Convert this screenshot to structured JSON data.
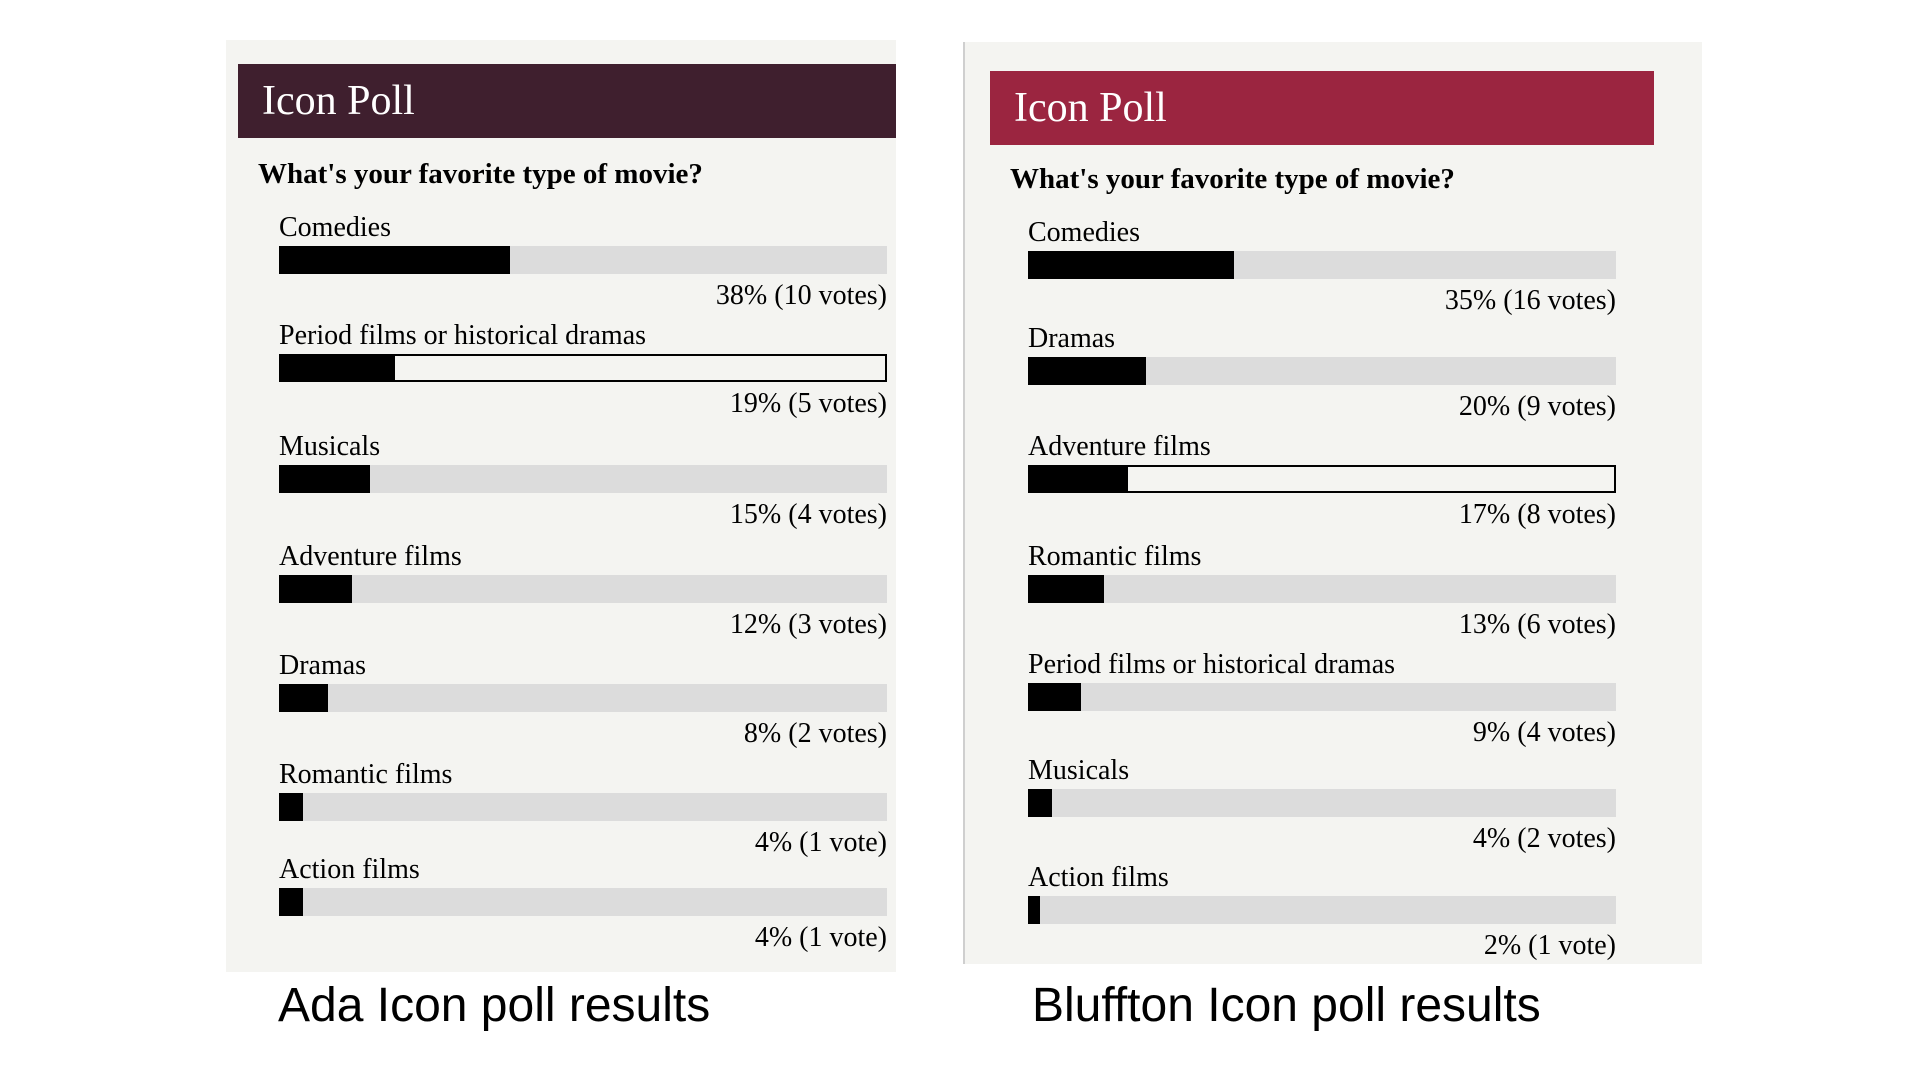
{
  "colors": {
    "ada_header": "#3f1f2e",
    "bluffton_header": "#9b2540",
    "bar_fill": "#000000",
    "bar_track": "#dcdcdc"
  },
  "chart_data": [
    {
      "type": "bar",
      "orientation": "horizontal",
      "title": "Icon Poll",
      "subtitle": "What's your favorite type of movie?",
      "caption": "Ada Icon poll results",
      "xlim": [
        0,
        100
      ],
      "categories": [
        "Comedies",
        "Period films or historical dramas",
        "Musicals",
        "Adventure films",
        "Dramas",
        "Romantic films",
        "Action films"
      ],
      "values": [
        38,
        19,
        15,
        12,
        8,
        4,
        4
      ],
      "result_labels": [
        "38% (10 votes)",
        "19% (5 votes)",
        "15% (4 votes)",
        "12% (3 votes)",
        "8% (2 votes)",
        "4% (1 vote)",
        "4% (1 vote)"
      ],
      "highlighted": "Period films or historical dramas"
    },
    {
      "type": "bar",
      "orientation": "horizontal",
      "title": "Icon Poll",
      "subtitle": "What's your favorite type of movie?",
      "caption": "Bluffton Icon poll results",
      "xlim": [
        0,
        100
      ],
      "categories": [
        "Comedies",
        "Dramas",
        "Adventure films",
        "Romantic films",
        "Period films or historical dramas",
        "Musicals",
        "Action films"
      ],
      "values": [
        35,
        20,
        17,
        13,
        9,
        4,
        2
      ],
      "result_labels": [
        "35% (16 votes)",
        "20% (9 votes)",
        "17% (8 votes)",
        "13% (6 votes)",
        "9% (4 votes)",
        "4% (2 votes)",
        "2% (1 vote)"
      ],
      "highlighted": "Adventure films"
    }
  ]
}
